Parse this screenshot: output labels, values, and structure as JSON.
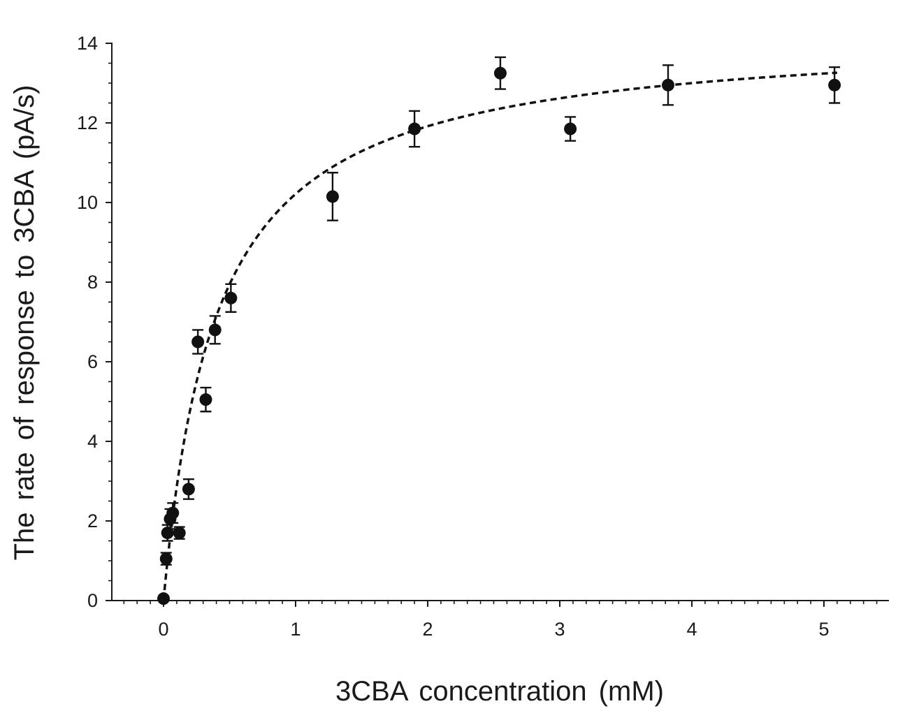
{
  "chart_data": {
    "type": "scatter",
    "title": "",
    "xlabel": "3CBA concentration (mM)",
    "ylabel": "The rate of response to 3CBA (pA/s)",
    "xlim": [
      -0.4,
      5.5
    ],
    "ylim": [
      0,
      14
    ],
    "xticks": [
      "0",
      "1",
      "2",
      "3",
      "4",
      "5"
    ],
    "yticks": [
      "0",
      "2",
      "4",
      "6",
      "8",
      "10",
      "12",
      "14"
    ],
    "grid": false,
    "legend": "none",
    "series": [
      {
        "type": "scatter_with_error",
        "points": [
          {
            "x": 0.0,
            "y": 0.05,
            "err": 0.0
          },
          {
            "x": 0.02,
            "y": 1.05,
            "err": 0.15
          },
          {
            "x": 0.03,
            "y": 1.7,
            "err": 0.2
          },
          {
            "x": 0.05,
            "y": 2.05,
            "err": 0.25
          },
          {
            "x": 0.07,
            "y": 2.2,
            "err": 0.25
          },
          {
            "x": 0.12,
            "y": 1.7,
            "err": 0.15
          },
          {
            "x": 0.19,
            "y": 2.8,
            "err": 0.25
          },
          {
            "x": 0.26,
            "y": 6.5,
            "err": 0.3
          },
          {
            "x": 0.32,
            "y": 5.05,
            "err": 0.3
          },
          {
            "x": 0.39,
            "y": 6.8,
            "err": 0.35
          },
          {
            "x": 0.51,
            "y": 7.6,
            "err": 0.35
          },
          {
            "x": 1.28,
            "y": 10.15,
            "err": 0.6
          },
          {
            "x": 1.9,
            "y": 11.85,
            "err": 0.45
          },
          {
            "x": 2.55,
            "y": 13.25,
            "err": 0.4
          },
          {
            "x": 3.08,
            "y": 11.85,
            "err": 0.3
          },
          {
            "x": 3.82,
            "y": 12.95,
            "err": 0.5
          },
          {
            "x": 5.08,
            "y": 12.95,
            "err": 0.45
          }
        ]
      },
      {
        "type": "fit",
        "style": "dashed",
        "model": "hyperbolic",
        "vmax": 14.3,
        "km": 0.4
      }
    ]
  }
}
